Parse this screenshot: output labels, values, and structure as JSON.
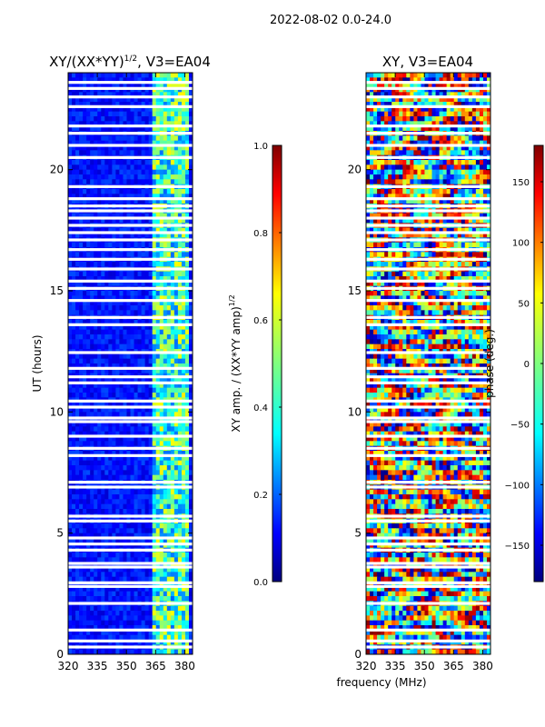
{
  "figure": {
    "suptitle": "2022-08-02 0.0-24.0",
    "xlabel": "frequency (MHz)"
  },
  "chart_data": [
    {
      "type": "heatmap",
      "title": "XY/(XX*YY)",
      "title_exponent": "1/2",
      "title_suffix": ", V3=EA04",
      "ylabel": "UT (hours)",
      "x_ticks": [
        "320",
        "335",
        "350",
        "365",
        "380"
      ],
      "x_tick_values": [
        320,
        335,
        350,
        365,
        380
      ],
      "xlim": [
        320,
        384
      ],
      "y_ticks": [
        "0",
        "5",
        "10",
        "15",
        "20"
      ],
      "y_tick_values": [
        0,
        5,
        10,
        15,
        20
      ],
      "ylim": [
        0,
        24
      ],
      "colorbar": {
        "label": "XY amp. / (XX*YY amp)",
        "label_exponent": "1/2",
        "ticks": [
          "0.0",
          "0.2",
          "0.4",
          "0.6",
          "0.8",
          "1.0"
        ],
        "tick_values": [
          0.0,
          0.2,
          0.4,
          0.6,
          0.8,
          1.0
        ],
        "range": [
          0.0,
          1.0
        ]
      },
      "bright_band_mhz": [
        364,
        383
      ]
    },
    {
      "type": "heatmap",
      "title": "XY, V3=EA04",
      "x_ticks": [
        "320",
        "335",
        "350",
        "365",
        "380"
      ],
      "x_tick_values": [
        320,
        335,
        350,
        365,
        380
      ],
      "xlim": [
        320,
        384
      ],
      "y_ticks": [
        "0",
        "5",
        "10",
        "15",
        "20"
      ],
      "y_tick_values": [
        0,
        5,
        10,
        15,
        20
      ],
      "ylim": [
        0,
        24
      ],
      "colorbar": {
        "label": "phase (deg.)",
        "ticks": [
          "−150",
          "−100",
          "−50",
          "0",
          "50",
          "100",
          "150"
        ],
        "tick_values": [
          -150,
          -100,
          -50,
          0,
          50,
          100,
          150
        ],
        "range": [
          -180,
          180
        ]
      }
    }
  ],
  "flagged_ut_hours": [
    0.3,
    0.55,
    1.0,
    2.1,
    2.8,
    2.95,
    3.6,
    3.75,
    4.3,
    4.55,
    4.8,
    5.5,
    5.7,
    6.9,
    7.1,
    8.2,
    8.5,
    9.0,
    9.6,
    9.75,
    10.2,
    10.45,
    11.2,
    11.45,
    11.8,
    12.45,
    13.6,
    13.9,
    14.6,
    15.1,
    15.4,
    15.9,
    16.3,
    16.7,
    17.1,
    17.4,
    17.7,
    18.0,
    18.3,
    18.5,
    18.8,
    19.3,
    20.5,
    21.0,
    21.5,
    21.8,
    22.6,
    23.0,
    23.35,
    23.6
  ]
}
